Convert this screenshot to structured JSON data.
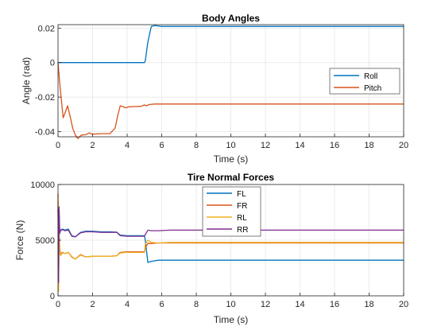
{
  "figure": {
    "background": "#ffffff"
  },
  "chart_data": [
    {
      "type": "line",
      "title": "Body Angles",
      "xlabel": "Time (s)",
      "ylabel": "Angle (rad)",
      "xlim": [
        0,
        20
      ],
      "ylim": [
        -0.043,
        0.022
      ],
      "xticks": [
        0,
        2,
        4,
        6,
        8,
        10,
        12,
        14,
        16,
        18,
        20
      ],
      "xtick_labels": [
        "0",
        "2",
        "4",
        "6",
        "8",
        "10",
        "12",
        "14",
        "16",
        "18",
        "20"
      ],
      "yticks": [
        -0.04,
        -0.02,
        0,
        0.02
      ],
      "ytick_labels": [
        "-0.04",
        "-0.02",
        "0",
        "0.02"
      ],
      "grid": true,
      "legend_position": "right-middle",
      "series": [
        {
          "name": "Roll",
          "color": "#0072BD",
          "x": [
            0,
            1,
            2,
            3,
            4,
            5,
            5.05,
            5.2,
            5.4,
            5.6,
            6,
            8,
            10,
            12,
            14,
            16,
            18,
            20
          ],
          "y": [
            0,
            0,
            0,
            0,
            0,
            0,
            0.001,
            0.012,
            0.021,
            0.0215,
            0.021,
            0.021,
            0.021,
            0.021,
            0.021,
            0.021,
            0.021,
            0.021
          ]
        },
        {
          "name": "Pitch",
          "color": "#D95319",
          "x": [
            0,
            0.1,
            0.2,
            0.3,
            0.45,
            0.55,
            0.7,
            0.85,
            1.0,
            1.15,
            1.35,
            1.6,
            1.8,
            2.0,
            2.5,
            3.0,
            3.3,
            3.45,
            3.6,
            3.75,
            3.9,
            4.1,
            4.4,
            4.8,
            5.0,
            5.1,
            5.3,
            5.6,
            6,
            8,
            10,
            12,
            14,
            16,
            18,
            20
          ],
          "y": [
            0,
            -0.012,
            -0.022,
            -0.032,
            -0.028,
            -0.025,
            -0.031,
            -0.038,
            -0.042,
            -0.044,
            -0.042,
            -0.0418,
            -0.0408,
            -0.0415,
            -0.0412,
            -0.0412,
            -0.038,
            -0.031,
            -0.025,
            -0.0255,
            -0.0262,
            -0.0256,
            -0.0255,
            -0.0254,
            -0.0245,
            -0.025,
            -0.0243,
            -0.024,
            -0.024,
            -0.024,
            -0.024,
            -0.024,
            -0.024,
            -0.024,
            -0.024,
            -0.024
          ]
        }
      ]
    },
    {
      "type": "line",
      "title": "Tire Normal Forces",
      "xlabel": "Time (s)",
      "ylabel": "Force (N)",
      "xlim": [
        0,
        20
      ],
      "ylim": [
        0,
        10000
      ],
      "xticks": [
        0,
        2,
        4,
        6,
        8,
        10,
        12,
        14,
        16,
        18,
        20
      ],
      "xtick_labels": [
        "0",
        "2",
        "4",
        "6",
        "8",
        "10",
        "12",
        "14",
        "16",
        "18",
        "20"
      ],
      "yticks": [
        0,
        5000,
        10000
      ],
      "ytick_labels": [
        "0",
        "5000",
        "10000"
      ],
      "grid": true,
      "legend_position": "top-center",
      "series": [
        {
          "name": "FL",
          "color": "#0072BD",
          "x": [
            0,
            0.03,
            0.06,
            0.1,
            0.15,
            0.25,
            0.4,
            0.6,
            0.8,
            1.0,
            1.3,
            1.6,
            2.0,
            2.5,
            3.0,
            3.4,
            3.6,
            4.0,
            4.5,
            5.0,
            5.05,
            5.2,
            5.4,
            5.8,
            6.5,
            8,
            10,
            12,
            14,
            16,
            18,
            20
          ],
          "y": [
            8500,
            1000,
            7800,
            5600,
            5900,
            6000,
            5900,
            6000,
            5400,
            5300,
            5700,
            5800,
            5800,
            5750,
            5750,
            5720,
            5450,
            5400,
            5400,
            5400,
            5000,
            3000,
            3100,
            3200,
            3200,
            3200,
            3200,
            3200,
            3200,
            3200,
            3200,
            3200
          ]
        },
        {
          "name": "FR",
          "color": "#D95319",
          "x": [
            0,
            0.03,
            0.06,
            0.1,
            0.15,
            0.25,
            0.4,
            0.6,
            0.8,
            1.0,
            1.3,
            1.6,
            2.0,
            2.5,
            3.0,
            3.4,
            3.6,
            4.0,
            4.5,
            5.0,
            5.05,
            5.2,
            5.4,
            5.8,
            6.5,
            8,
            10,
            12,
            14,
            16,
            18,
            20
          ],
          "y": [
            9200,
            800,
            6000,
            4200,
            3700,
            3900,
            3800,
            3900,
            3500,
            3300,
            3700,
            3500,
            3550,
            3550,
            3550,
            3600,
            3900,
            3950,
            3950,
            3950,
            4300,
            4700,
            4700,
            4750,
            4750,
            4750,
            4750,
            4750,
            4750,
            4750,
            4750,
            4750
          ]
        },
        {
          "name": "RL",
          "color": "#EDB120",
          "x": [
            0,
            0.03,
            0.06,
            0.1,
            0.15,
            0.25,
            0.4,
            0.6,
            0.8,
            1.0,
            1.3,
            1.6,
            2.0,
            2.5,
            3.0,
            3.4,
            3.6,
            4.0,
            4.5,
            5.0,
            5.05,
            5.2,
            5.4,
            5.8,
            6.5,
            8,
            10,
            12,
            14,
            16,
            18,
            20
          ],
          "y": [
            8800,
            400,
            5500,
            4000,
            3600,
            3850,
            3800,
            3900,
            3450,
            3300,
            3650,
            3500,
            3550,
            3550,
            3550,
            3600,
            3850,
            3900,
            3900,
            3900,
            4600,
            5000,
            4800,
            4750,
            4800,
            4800,
            4800,
            4800,
            4800,
            4800,
            4800,
            4800
          ]
        },
        {
          "name": "RR",
          "color": "#7E2F8E",
          "x": [
            0,
            0.03,
            0.06,
            0.1,
            0.15,
            0.25,
            0.4,
            0.6,
            0.8,
            1.0,
            1.3,
            1.6,
            2.0,
            2.5,
            3.0,
            3.4,
            3.6,
            4.0,
            4.5,
            5.0,
            5.05,
            5.2,
            5.4,
            5.8,
            6.5,
            8,
            10,
            12,
            14,
            16,
            18,
            20
          ],
          "y": [
            7800,
            1200,
            8000,
            5700,
            5850,
            5950,
            5850,
            5900,
            5350,
            5300,
            5650,
            5750,
            5750,
            5700,
            5700,
            5700,
            5400,
            5350,
            5350,
            5350,
            5500,
            5900,
            5850,
            5850,
            5900,
            5900,
            5900,
            5900,
            5900,
            5900,
            5900,
            5900
          ]
        }
      ]
    }
  ]
}
